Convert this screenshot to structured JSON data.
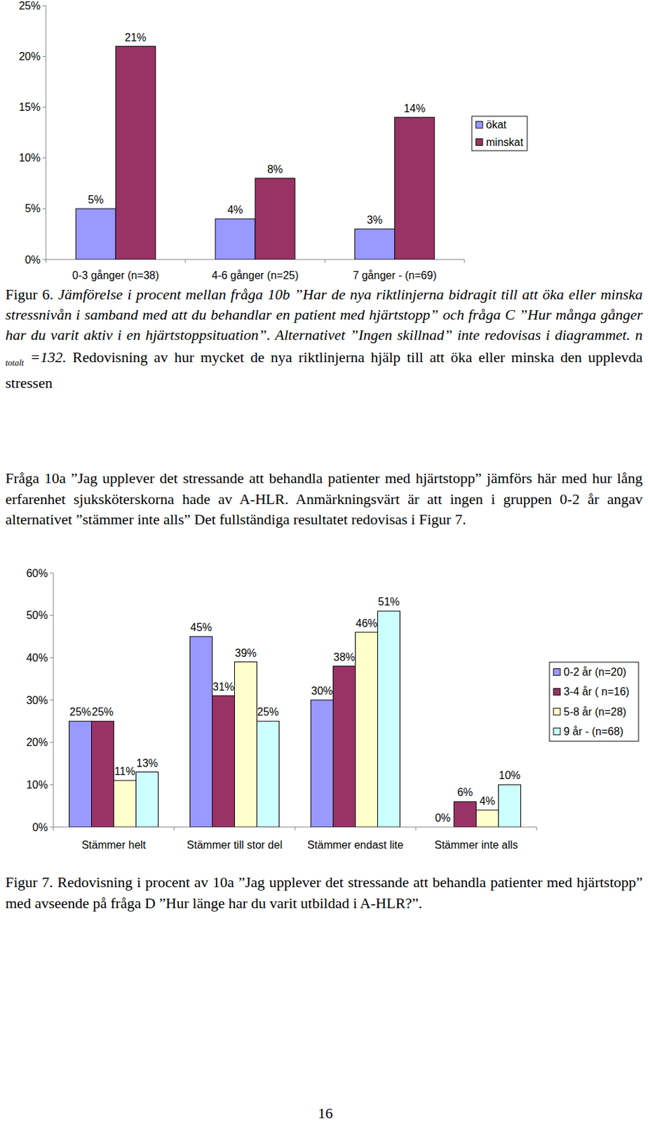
{
  "chart_data": [
    {
      "type": "bar",
      "categories": [
        "0-3 gånger (n=38)",
        "4-6 gånger (n=25)",
        "7 gånger - (n=69)"
      ],
      "series": [
        {
          "name": "ökat",
          "color": "#9999ff",
          "values": [
            5,
            4,
            3
          ],
          "value_labels": [
            "5%",
            "4%",
            "3%"
          ]
        },
        {
          "name": "minskat",
          "color": "#993366",
          "values": [
            21,
            8,
            14
          ],
          "value_labels": [
            "21%",
            "8%",
            "14%"
          ]
        }
      ],
      "ylim": [
        0,
        25
      ],
      "yticks": [
        {
          "value": 0,
          "label": "0%"
        },
        {
          "value": 5,
          "label": "5%"
        },
        {
          "value": 10,
          "label": "10%"
        },
        {
          "value": 15,
          "label": "15%"
        },
        {
          "value": 20,
          "label": "20%"
        },
        {
          "value": 25,
          "label": "25%"
        }
      ],
      "data_labels": true,
      "legend": "right"
    },
    {
      "type": "bar",
      "categories": [
        "Stämmer helt",
        "Stämmer till stor del",
        "Stämmer endast lite",
        "Stämmer inte alls"
      ],
      "series": [
        {
          "name": "0-2 år (n=20)",
          "color": "#9999ff",
          "values": [
            25,
            45,
            30,
            0
          ],
          "value_labels": [
            "25%",
            "45%",
            "30%",
            "0%"
          ]
        },
        {
          "name": "3-4 år ( n=16)",
          "color": "#993366",
          "values": [
            25,
            31,
            38,
            6
          ],
          "value_labels": [
            "25%",
            "31%",
            "38%",
            "6%"
          ]
        },
        {
          "name": "5-8 år (n=28)",
          "color": "#ffffcc",
          "values": [
            11,
            39,
            46,
            4
          ],
          "value_labels": [
            "11%",
            "39%",
            "46%",
            "4%"
          ]
        },
        {
          "name": "9 år - (n=68)",
          "color": "#ccffff",
          "values": [
            13,
            25,
            51,
            10
          ],
          "value_labels": [
            "13%",
            "25%",
            "51%",
            "10%"
          ]
        }
      ],
      "ylim": [
        0,
        60
      ],
      "yticks": [
        {
          "value": 0,
          "label": "0%"
        },
        {
          "value": 10,
          "label": "10%"
        },
        {
          "value": 20,
          "label": "20%"
        },
        {
          "value": 30,
          "label": "30%"
        },
        {
          "value": 40,
          "label": "40%"
        },
        {
          "value": 50,
          "label": "50%"
        },
        {
          "value": 60,
          "label": "60%"
        }
      ],
      "data_labels": true,
      "legend": "right"
    }
  ],
  "figure_6_caption": {
    "label": "Figur 6.",
    "italic": "Jämförelse i procent mellan fråga 10b ”Har de nya riktlinjerna bidragit till att öka eller minska stressnivån i samband med att du behandlar en patient med hjärtstopp” och fråga C ”Hur många gånger har du varit aktiv i en hjärtstoppsituation”. Alternativet ”Ingen skillnad” inte redovisas i diagrammet. n",
    "subscript": "totalt",
    "italic_after": "=132.",
    "text": "Redovisning av hur mycket de nya riktlinjerna hjälp till att öka eller minska den upplevda stressen"
  },
  "paragraph": "Fråga 10a ”Jag upplever det stressande att behandla patienter med hjärtstopp” jämförs här med hur lång erfarenhet sjuksköterskorna hade av A-HLR. Anmärkningsvärt är att ingen i gruppen 0-2 år angav alternativet ”stämmer inte alls” Det fullständiga resultatet redovisas i Figur 7.",
  "figure_7_caption": {
    "label": "Figur 7.",
    "text": "Redovisning i procent av 10a ”Jag upplever det stressande att behandla patienter med hjärtstopp” med avseende på fråga D ”Hur länge har du varit utbildad i A-HLR?”."
  },
  "page_number": "16"
}
